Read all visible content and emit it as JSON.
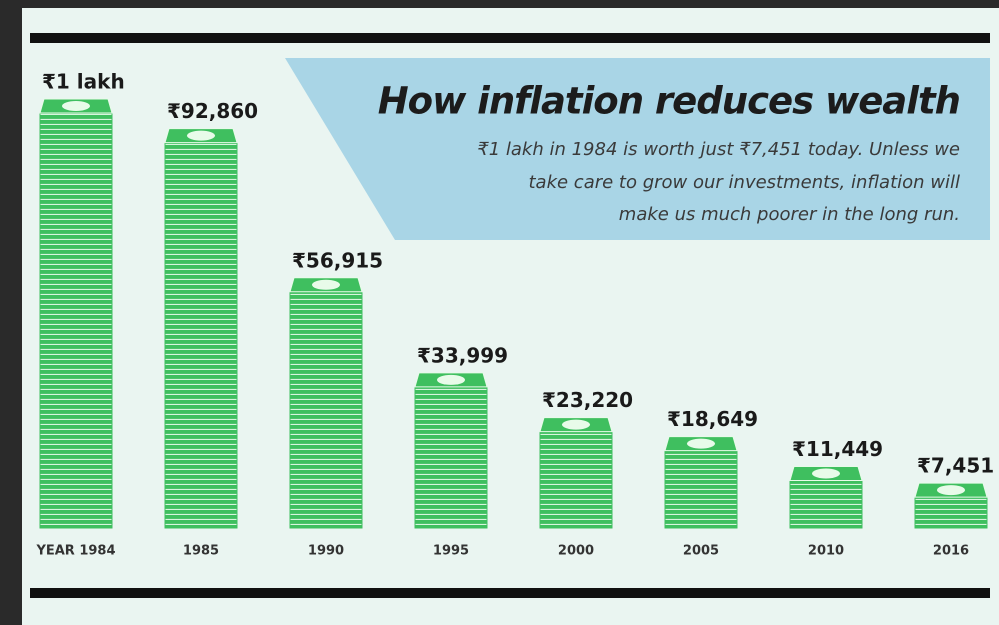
{
  "chart_data": {
    "type": "bar",
    "title": "How inflation reduces wealth",
    "subtitle": [
      "₹1 lakh in 1984 is worth just ₹7,451 today. Unless we",
      "take care to grow our investments, inflation will",
      "make us much poorer in the long run."
    ],
    "categories": [
      "YEAR 1984",
      "1985",
      "1990",
      "1995",
      "2000",
      "2005",
      "2010",
      "2016"
    ],
    "values": [
      100000,
      92860,
      56915,
      33999,
      23220,
      18649,
      11449,
      7451
    ],
    "value_labels": [
      "₹1 lakh",
      "₹92,860",
      "₹56,915",
      "₹33,999",
      "₹23,220",
      "₹18,649",
      "₹11,449",
      "₹7,451"
    ],
    "color": "#3fbf5f"
  }
}
